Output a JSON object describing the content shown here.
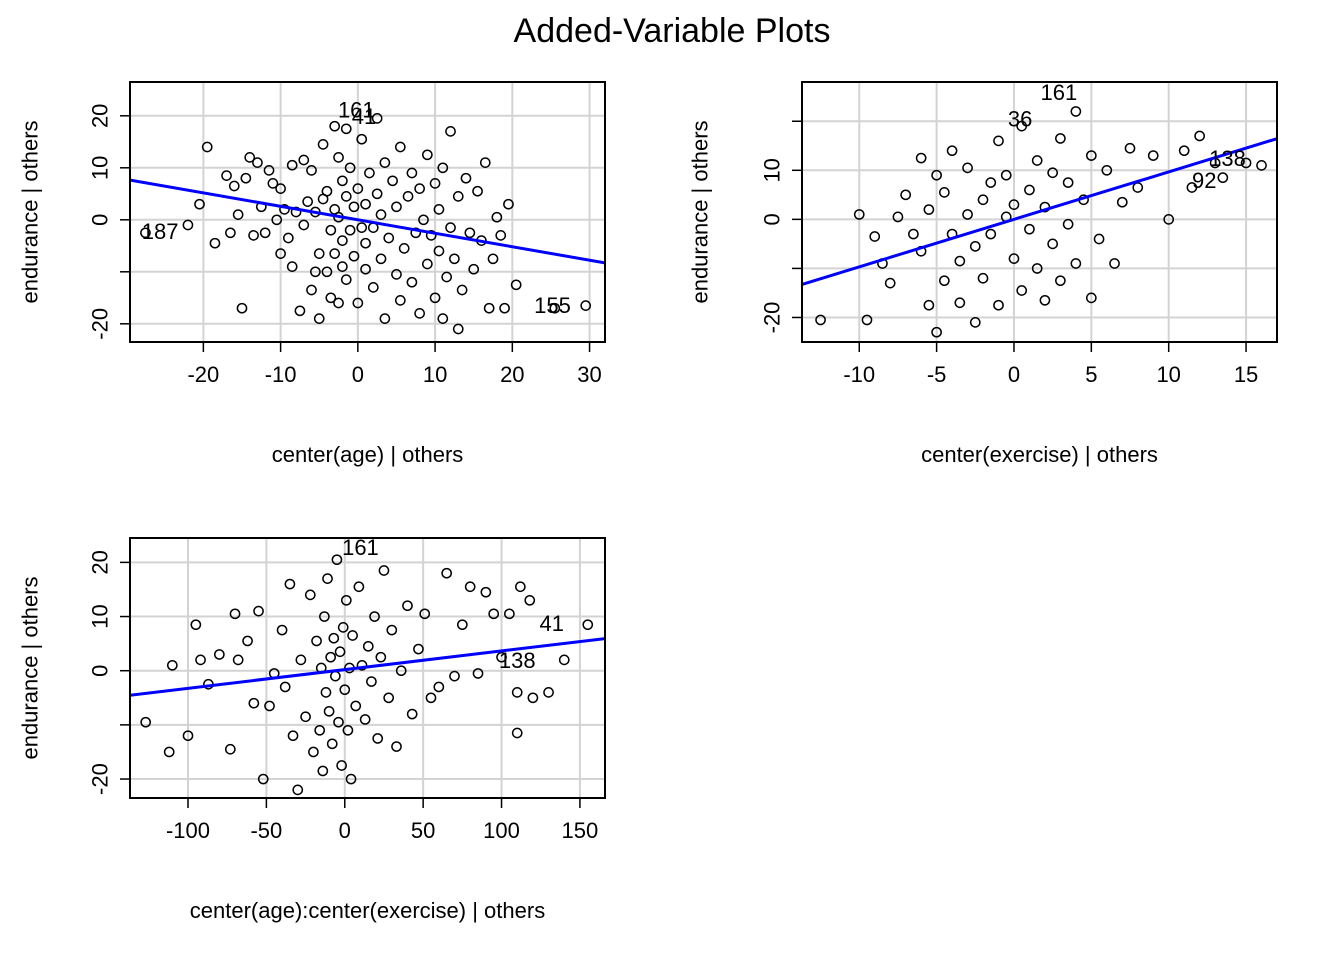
{
  "figure": {
    "title": "Added-Variable Plots"
  },
  "colors": {
    "fit_line": "#0000ff",
    "points": "#000000",
    "grid": "#d3d3d3",
    "frame": "#000000"
  },
  "chart_data": [
    {
      "type": "scatter",
      "title": "",
      "xlabel": "center(age) | others",
      "ylabel": "endurance  | others",
      "xlim": [
        -29.5,
        32
      ],
      "ylim": [
        -23.5,
        26.5
      ],
      "xticks": [
        -20,
        -10,
        0,
        10,
        20,
        30
      ],
      "yticks": [
        -20,
        -10,
        0,
        10,
        20
      ],
      "ytick_labels": [
        "-20",
        "",
        "0",
        "10",
        "20"
      ],
      "xgrid": [
        -20,
        -10,
        0,
        10,
        20,
        30
      ],
      "ygrid": [
        -20,
        -10,
        0,
        10,
        20
      ],
      "grid": true,
      "fit": {
        "slope": -0.259,
        "intercept": 0.0
      },
      "labels": [
        {
          "text": "187",
          "x": -25.6,
          "y": -2.2
        },
        {
          "text": "155",
          "x": 25.2,
          "y": -16.4
        },
        {
          "text": "161",
          "x": -0.2,
          "y": 21.2
        },
        {
          "text": "41",
          "x": 0.8,
          "y": 20.0
        }
      ],
      "points": [
        [
          -27.5,
          -2.5
        ],
        [
          -22.0,
          -1.0
        ],
        [
          -20.5,
          3.0
        ],
        [
          -19.5,
          14.0
        ],
        [
          -18.5,
          -4.5
        ],
        [
          -17.0,
          8.5
        ],
        [
          -16.5,
          -2.5
        ],
        [
          -16.0,
          6.5
        ],
        [
          -15.5,
          1.0
        ],
        [
          -15.0,
          -17.0
        ],
        [
          -14.5,
          8.0
        ],
        [
          -14.0,
          12.0
        ],
        [
          -13.5,
          -3.0
        ],
        [
          -13.0,
          11.0
        ],
        [
          -12.5,
          2.5
        ],
        [
          -12.0,
          -2.5
        ],
        [
          -11.5,
          9.5
        ],
        [
          -11.0,
          7.0
        ],
        [
          -10.5,
          0.0
        ],
        [
          -10.0,
          -6.5
        ],
        [
          -10.0,
          6.0
        ],
        [
          -9.5,
          2.0
        ],
        [
          -9.0,
          -3.5
        ],
        [
          -8.5,
          -9.0
        ],
        [
          -8.5,
          10.5
        ],
        [
          -8.0,
          1.5
        ],
        [
          -7.5,
          -17.5
        ],
        [
          -7.0,
          11.5
        ],
        [
          -7.0,
          -1.0
        ],
        [
          -6.5,
          3.5
        ],
        [
          -6.0,
          -13.5
        ],
        [
          -6.0,
          9.5
        ],
        [
          -5.5,
          -10.0
        ],
        [
          -5.5,
          1.5
        ],
        [
          -5.0,
          -19.0
        ],
        [
          -5.0,
          -6.5
        ],
        [
          -4.5,
          4.0
        ],
        [
          -4.5,
          14.5
        ],
        [
          -4.0,
          -10.0
        ],
        [
          -4.0,
          5.5
        ],
        [
          -3.5,
          -2.0
        ],
        [
          -3.5,
          -15.0
        ],
        [
          -3.0,
          2.0
        ],
        [
          -3.0,
          18.0
        ],
        [
          -3.0,
          -6.5
        ],
        [
          -2.5,
          -16.0
        ],
        [
          -2.5,
          12.0
        ],
        [
          -2.5,
          0.5
        ],
        [
          -2.0,
          -9.0
        ],
        [
          -2.0,
          7.5
        ],
        [
          -2.0,
          -4.0
        ],
        [
          -1.5,
          17.5
        ],
        [
          -1.5,
          -11.5
        ],
        [
          -1.5,
          4.5
        ],
        [
          -1.0,
          -2.0
        ],
        [
          -1.0,
          10.0
        ],
        [
          -0.5,
          -7.0
        ],
        [
          -0.5,
          2.5
        ],
        [
          0.0,
          -16.0
        ],
        [
          0.0,
          6.0
        ],
        [
          0.5,
          -1.5
        ],
        [
          0.5,
          15.5
        ],
        [
          1.0,
          -9.5
        ],
        [
          1.0,
          3.0
        ],
        [
          1.0,
          -4.5
        ],
        [
          1.5,
          9.0
        ],
        [
          2.0,
          -13.0
        ],
        [
          2.0,
          -1.5
        ],
        [
          2.5,
          19.5
        ],
        [
          2.5,
          5.0
        ],
        [
          3.0,
          -7.5
        ],
        [
          3.0,
          1.0
        ],
        [
          3.5,
          -19.0
        ],
        [
          3.5,
          11.0
        ],
        [
          4.0,
          -3.5
        ],
        [
          4.5,
          7.5
        ],
        [
          5.0,
          -10.5
        ],
        [
          5.0,
          2.5
        ],
        [
          5.5,
          -15.5
        ],
        [
          5.5,
          14.0
        ],
        [
          6.0,
          -5.5
        ],
        [
          6.5,
          4.5
        ],
        [
          7.0,
          -12.0
        ],
        [
          7.0,
          9.0
        ],
        [
          7.5,
          -2.5
        ],
        [
          8.0,
          -18.0
        ],
        [
          8.0,
          6.0
        ],
        [
          8.5,
          0.0
        ],
        [
          9.0,
          -8.5
        ],
        [
          9.0,
          12.5
        ],
        [
          9.5,
          -3.0
        ],
        [
          10.0,
          -15.0
        ],
        [
          10.0,
          7.0
        ],
        [
          10.5,
          -6.0
        ],
        [
          10.5,
          2.0
        ],
        [
          11.0,
          -19.0
        ],
        [
          11.0,
          10.0
        ],
        [
          11.5,
          -11.0
        ],
        [
          12.0,
          17.0
        ],
        [
          12.0,
          -1.5
        ],
        [
          12.5,
          -7.5
        ],
        [
          13.0,
          4.5
        ],
        [
          13.0,
          -21.0
        ],
        [
          13.5,
          -13.5
        ],
        [
          14.0,
          8.0
        ],
        [
          14.5,
          -2.5
        ],
        [
          15.0,
          -9.5
        ],
        [
          15.5,
          5.5
        ],
        [
          16.0,
          -4.0
        ],
        [
          16.5,
          11.0
        ],
        [
          17.0,
          -17.0
        ],
        [
          17.5,
          -7.5
        ],
        [
          18.0,
          0.5
        ],
        [
          18.5,
          -3.0
        ],
        [
          19.0,
          -17.0
        ],
        [
          19.5,
          3.0
        ],
        [
          20.5,
          -12.5
        ],
        [
          25.5,
          -17.0
        ],
        [
          29.5,
          -16.5
        ]
      ]
    },
    {
      "type": "scatter",
      "title": "",
      "xlabel": "center(exercise) | others",
      "ylabel": "endurance  | others",
      "xlim": [
        -13.7,
        17
      ],
      "ylim": [
        -25,
        28
      ],
      "xticks": [
        -10,
        -5,
        0,
        5,
        10,
        15
      ],
      "yticks": [
        -20,
        -10,
        0,
        10,
        20
      ],
      "ytick_labels": [
        "-20",
        "",
        "0",
        "10",
        ""
      ],
      "xgrid": [
        -10,
        -5,
        0,
        5,
        10,
        15
      ],
      "ygrid": [
        -20,
        -10,
        0,
        10,
        20
      ],
      "grid": true,
      "fit": {
        "slope": 0.968,
        "intercept": 0.0
      },
      "labels": [
        {
          "text": "161",
          "x": 2.9,
          "y": 26.0
        },
        {
          "text": "36",
          "x": 0.4,
          "y": 20.6
        },
        {
          "text": "138",
          "x": 13.8,
          "y": 12.5
        },
        {
          "text": "92",
          "x": 12.3,
          "y": 8.0
        }
      ],
      "points": [
        [
          -12.5,
          -20.5
        ],
        [
          -10.0,
          1.0
        ],
        [
          -9.5,
          -20.5
        ],
        [
          -9.0,
          -3.5
        ],
        [
          -8.5,
          -9.0
        ],
        [
          -8.0,
          -13.0
        ],
        [
          -7.5,
          0.5
        ],
        [
          -7.0,
          5.0
        ],
        [
          -6.5,
          -3.0
        ],
        [
          -6.0,
          12.5
        ],
        [
          -6.0,
          -6.5
        ],
        [
          -5.5,
          -17.5
        ],
        [
          -5.5,
          2.0
        ],
        [
          -5.0,
          9.0
        ],
        [
          -5.0,
          -23.0
        ],
        [
          -4.5,
          -12.5
        ],
        [
          -4.5,
          5.5
        ],
        [
          -4.0,
          -3.0
        ],
        [
          -4.0,
          14.0
        ],
        [
          -3.5,
          -8.5
        ],
        [
          -3.5,
          -17.0
        ],
        [
          -3.0,
          1.0
        ],
        [
          -3.0,
          10.5
        ],
        [
          -2.5,
          -5.5
        ],
        [
          -2.5,
          -21.0
        ],
        [
          -2.0,
          4.0
        ],
        [
          -2.0,
          -12.0
        ],
        [
          -1.5,
          7.5
        ],
        [
          -1.5,
          -3.0
        ],
        [
          -1.0,
          16.0
        ],
        [
          -1.0,
          -17.5
        ],
        [
          -0.5,
          0.5
        ],
        [
          -0.5,
          9.0
        ],
        [
          0.0,
          -8.0
        ],
        [
          0.0,
          3.0
        ],
        [
          0.5,
          -14.5
        ],
        [
          0.5,
          19.0
        ],
        [
          1.0,
          -2.0
        ],
        [
          1.0,
          6.0
        ],
        [
          1.5,
          -10.0
        ],
        [
          1.5,
          12.0
        ],
        [
          2.0,
          -16.5
        ],
        [
          2.0,
          2.5
        ],
        [
          2.5,
          -5.0
        ],
        [
          2.5,
          9.5
        ],
        [
          3.0,
          -12.5
        ],
        [
          3.0,
          16.5
        ],
        [
          3.5,
          -1.0
        ],
        [
          3.5,
          7.5
        ],
        [
          4.0,
          -9.0
        ],
        [
          4.0,
          22.0
        ],
        [
          4.5,
          4.0
        ],
        [
          5.0,
          -16.0
        ],
        [
          5.0,
          13.0
        ],
        [
          5.5,
          -4.0
        ],
        [
          6.0,
          10.0
        ],
        [
          6.5,
          -9.0
        ],
        [
          7.0,
          3.5
        ],
        [
          7.5,
          14.5
        ],
        [
          8.0,
          6.5
        ],
        [
          9.0,
          13.0
        ],
        [
          10.0,
          0.0
        ],
        [
          11.0,
          14.0
        ],
        [
          11.5,
          6.5
        ],
        [
          12.0,
          17.0
        ],
        [
          13.0,
          11.5
        ],
        [
          13.5,
          8.5
        ],
        [
          15.0,
          11.5
        ],
        [
          16.0,
          11.0
        ]
      ]
    },
    {
      "type": "scatter",
      "title": "",
      "xlabel": "center(age):center(exercise) | others",
      "ylabel": "endurance  | others",
      "xlim": [
        -137,
        166
      ],
      "ylim": [
        -23.5,
        24.5
      ],
      "xticks": [
        -100,
        -50,
        0,
        50,
        100,
        150
      ],
      "yticks": [
        -20,
        -10,
        0,
        10,
        20
      ],
      "ytick_labels": [
        "-20",
        "",
        "0",
        "10",
        "20"
      ],
      "xgrid": [
        -100,
        -50,
        0,
        50,
        100,
        150
      ],
      "ygrid": [
        -20,
        -10,
        0,
        10,
        20
      ],
      "grid": true,
      "fit": {
        "slope": 0.0345,
        "intercept": 0.2
      },
      "labels": [
        {
          "text": "161",
          "x": 10.0,
          "y": 22.8
        },
        {
          "text": "41",
          "x": 132.0,
          "y": 8.8
        },
        {
          "text": "138",
          "x": 110.0,
          "y": 2.0
        }
      ],
      "points": [
        [
          -127.0,
          -9.5
        ],
        [
          -112.0,
          -15.0
        ],
        [
          -110.0,
          1.0
        ],
        [
          -100.0,
          -12.0
        ],
        [
          -95.0,
          8.5
        ],
        [
          -92.0,
          2.0
        ],
        [
          -87.0,
          -2.5
        ],
        [
          -80.0,
          3.0
        ],
        [
          -73.0,
          -14.5
        ],
        [
          -70.0,
          10.5
        ],
        [
          -68.0,
          2.0
        ],
        [
          -62.0,
          5.5
        ],
        [
          -58.0,
          -6.0
        ],
        [
          -55.0,
          11.0
        ],
        [
          -52.0,
          -20.0
        ],
        [
          -48.0,
          -6.5
        ],
        [
          -45.0,
          -0.5
        ],
        [
          -40.0,
          7.5
        ],
        [
          -38.0,
          -3.0
        ],
        [
          -35.0,
          16.0
        ],
        [
          -33.0,
          -12.0
        ],
        [
          -30.0,
          -22.0
        ],
        [
          -28.0,
          2.0
        ],
        [
          -25.0,
          -8.5
        ],
        [
          -22.0,
          14.0
        ],
        [
          -20.0,
          -15.0
        ],
        [
          -18.0,
          5.5
        ],
        [
          -16.0,
          -11.0
        ],
        [
          -15.0,
          0.5
        ],
        [
          -14.0,
          -18.5
        ],
        [
          -13.0,
          10.0
        ],
        [
          -12.0,
          -4.0
        ],
        [
          -11.0,
          17.0
        ],
        [
          -10.0,
          -7.5
        ],
        [
          -9.0,
          2.5
        ],
        [
          -8.0,
          -13.5
        ],
        [
          -7.0,
          6.0
        ],
        [
          -6.0,
          -1.0
        ],
        [
          -5.0,
          20.5
        ],
        [
          -4.0,
          -9.5
        ],
        [
          -3.0,
          3.5
        ],
        [
          -2.0,
          -17.5
        ],
        [
          -1.0,
          8.0
        ],
        [
          0.0,
          -3.5
        ],
        [
          1.0,
          13.0
        ],
        [
          2.0,
          -11.0
        ],
        [
          3.0,
          0.5
        ],
        [
          4.0,
          -20.0
        ],
        [
          5.0,
          6.5
        ],
        [
          7.0,
          -6.5
        ],
        [
          9.0,
          15.5
        ],
        [
          11.0,
          1.0
        ],
        [
          13.0,
          -9.0
        ],
        [
          15.0,
          4.5
        ],
        [
          17.0,
          -2.0
        ],
        [
          19.0,
          10.0
        ],
        [
          21.0,
          -12.5
        ],
        [
          23.0,
          2.5
        ],
        [
          25.0,
          18.5
        ],
        [
          28.0,
          -5.0
        ],
        [
          30.0,
          7.5
        ],
        [
          33.0,
          -14.0
        ],
        [
          36.0,
          0.0
        ],
        [
          40.0,
          12.0
        ],
        [
          43.0,
          -8.0
        ],
        [
          47.0,
          4.0
        ],
        [
          51.0,
          10.5
        ],
        [
          55.0,
          -5.0
        ],
        [
          60.0,
          -3.0
        ],
        [
          65.0,
          18.0
        ],
        [
          70.0,
          -1.0
        ],
        [
          75.0,
          8.5
        ],
        [
          80.0,
          15.5
        ],
        [
          85.0,
          -0.5
        ],
        [
          90.0,
          14.5
        ],
        [
          95.0,
          10.5
        ],
        [
          100.0,
          2.5
        ],
        [
          105.0,
          10.5
        ],
        [
          110.0,
          -4.0
        ],
        [
          110.0,
          -11.5
        ],
        [
          112.0,
          15.5
        ],
        [
          118.0,
          13.0
        ],
        [
          120.0,
          -5.0
        ],
        [
          130.0,
          -4.0
        ],
        [
          140.0,
          2.0
        ],
        [
          155.0,
          8.5
        ]
      ]
    }
  ]
}
